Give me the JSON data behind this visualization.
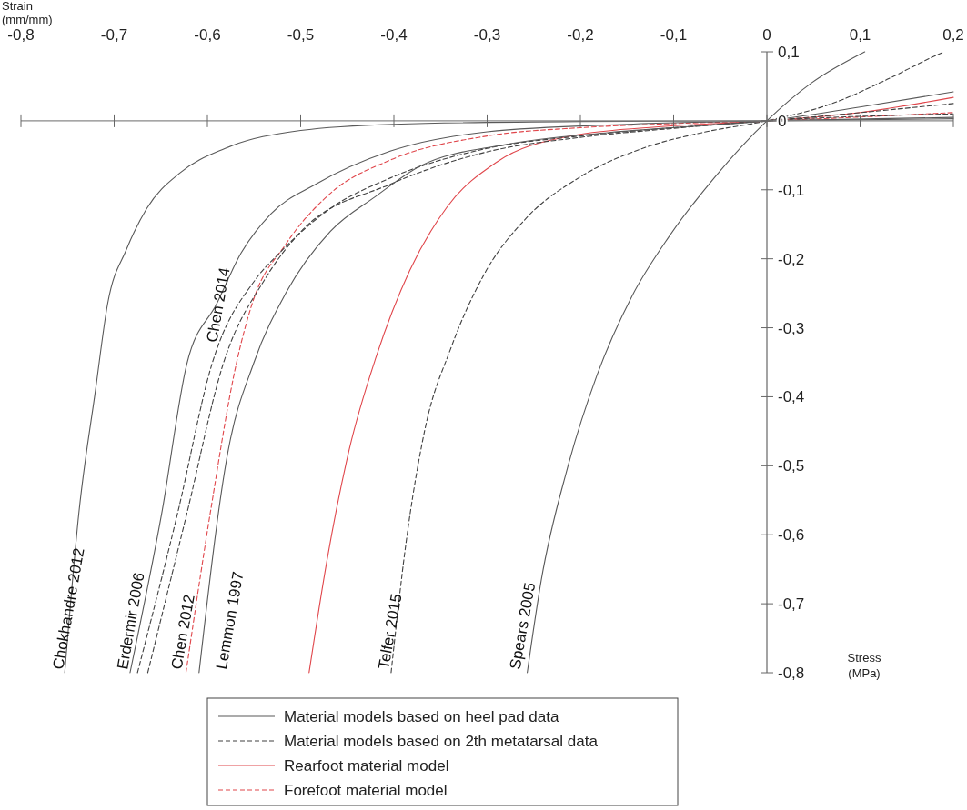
{
  "chart_data": {
    "type": "line",
    "xlabel": "Strain (mm/mm)",
    "ylabel": "Stress (MPa)",
    "xlim": [
      -0.8,
      0.2
    ],
    "ylim": [
      -0.8,
      0.1
    ],
    "xticks": [
      {
        "value": -0.8,
        "label": "-0,8"
      },
      {
        "value": -0.7,
        "label": "-0,7"
      },
      {
        "value": -0.6,
        "label": "-0,6"
      },
      {
        "value": -0.5,
        "label": "-0,5"
      },
      {
        "value": -0.4,
        "label": "-0,4"
      },
      {
        "value": -0.3,
        "label": "-0,3"
      },
      {
        "value": -0.2,
        "label": "-0,2"
      },
      {
        "value": -0.1,
        "label": "-0,1"
      },
      0,
      {
        "value": 0.1,
        "label": "0,1"
      },
      {
        "value": 0.2,
        "label": "0,2"
      }
    ],
    "yticks": [
      {
        "value": 0.1,
        "label": "0,1"
      },
      0,
      {
        "value": -0.1,
        "label": "-0,1"
      },
      {
        "value": -0.2,
        "label": "-0,2"
      },
      {
        "value": -0.3,
        "label": "-0,3"
      },
      {
        "value": -0.4,
        "label": "-0,4"
      },
      {
        "value": -0.5,
        "label": "-0,5"
      },
      {
        "value": -0.6,
        "label": "-0,6"
      },
      {
        "value": -0.7,
        "label": "-0,7"
      },
      {
        "value": -0.8,
        "label": "-0,8"
      }
    ],
    "legend": "bottom",
    "marker": "none",
    "series": [
      {
        "name": "Material models based on heel pad data",
        "color": "#595959",
        "line_style": "solid",
        "x": [
          -0.257,
          -0.242,
          -0.214,
          -0.182,
          -0.145,
          -0.105,
          -0.056,
          0,
          0.048,
          0.105
        ],
        "values": [
          -0.8,
          -0.666,
          -0.504,
          -0.368,
          -0.255,
          -0.168,
          -0.082,
          0,
          0.055,
          0.1
        ]
      },
      {
        "name": "Material models based on 2th metatarsal data",
        "color": "#404040",
        "line_style": "dashed",
        "x": [
          -0.403,
          -0.387,
          -0.367,
          -0.339,
          -0.303,
          -0.258,
          -0.201,
          -0.129,
          -0.069,
          0,
          0.07,
          0.129,
          0.177,
          0.19
        ],
        "values": [
          -0.8,
          -0.612,
          -0.449,
          -0.33,
          -0.222,
          -0.141,
          -0.082,
          -0.038,
          -0.017,
          0,
          0.025,
          0.06,
          0.092,
          0.1
        ]
      },
      {
        "name": "Rearfoot material model",
        "color": "#e0464b",
        "line_style": "solid",
        "x": [
          -0.491,
          -0.472,
          -0.448,
          -0.419,
          -0.383,
          -0.343,
          -0.29,
          -0.21,
          -0.109,
          0,
          0.1,
          0.2
        ],
        "values": [
          -0.8,
          -0.639,
          -0.477,
          -0.342,
          -0.217,
          -0.125,
          -0.06,
          -0.022,
          -0.008,
          0,
          0.012,
          0.034
        ]
      },
      {
        "name": "Forefoot material model",
        "color": "#e0464b",
        "line_style": "dashed",
        "x": [
          -0.623,
          -0.597,
          -0.569,
          -0.552,
          -0.516,
          -0.468,
          -0.404,
          -0.3,
          -0.2,
          -0.1,
          0,
          0.2
        ],
        "values": [
          -0.8,
          -0.569,
          -0.352,
          -0.265,
          -0.179,
          -0.105,
          -0.057,
          -0.022,
          -0.01,
          -0.004,
          0,
          0.012
        ]
      },
      {
        "color": "#595959",
        "line_style": "solid",
        "x": [
          -0.753,
          -0.738,
          -0.72,
          -0.707,
          -0.687,
          -0.665,
          -0.629,
          -0.581,
          -0.5,
          -0.4,
          -0.2,
          0,
          0.2
        ],
        "values": [
          -0.8,
          -0.57,
          -0.39,
          -0.265,
          -0.187,
          -0.127,
          -0.075,
          -0.04,
          -0.014,
          -0.005,
          -0.001,
          0,
          0.003
        ]
      },
      {
        "color": "#595959",
        "line_style": "solid",
        "x": [
          -0.683,
          -0.649,
          -0.622,
          -0.59,
          -0.564,
          -0.532,
          -0.484,
          -0.404,
          -0.3,
          -0.15,
          0,
          0.2
        ],
        "values": [
          -0.8,
          -0.569,
          -0.352,
          -0.265,
          -0.192,
          -0.135,
          -0.092,
          -0.044,
          -0.016,
          -0.005,
          0,
          0.005
        ]
      },
      {
        "color": "#404040",
        "line_style": "dashed",
        "x": [
          -0.675,
          -0.632,
          -0.595,
          -0.549,
          -0.523,
          -0.468,
          -0.404,
          -0.3,
          -0.2,
          -0.1,
          0,
          0.2
        ],
        "values": [
          -0.8,
          -0.569,
          -0.352,
          -0.231,
          -0.192,
          -0.127,
          -0.083,
          -0.04,
          -0.022,
          -0.01,
          0,
          0.025
        ]
      },
      {
        "color": "#404040",
        "line_style": "dashed",
        "x": [
          -0.664,
          -0.622,
          -0.583,
          -0.539,
          -0.5,
          -0.404,
          -0.3,
          -0.2,
          -0.1,
          0,
          0.2
        ],
        "values": [
          -0.8,
          -0.569,
          -0.352,
          -0.231,
          -0.161,
          -0.092,
          -0.045,
          -0.024,
          -0.011,
          0,
          0.01
        ]
      },
      {
        "color": "#595959",
        "line_style": "solid",
        "x": [
          -0.609,
          -0.578,
          -0.55,
          -0.516,
          -0.468,
          -0.42,
          -0.371,
          -0.283,
          -0.169,
          -0.069,
          0,
          0.1,
          0.2
        ],
        "values": [
          -0.8,
          -0.48,
          -0.35,
          -0.25,
          -0.16,
          -0.11,
          -0.065,
          -0.035,
          -0.017,
          -0.007,
          0,
          0.02,
          0.042
        ]
      }
    ],
    "annotations": [
      {
        "text": "Chokhandre 2012",
        "x": -0.753,
        "y": -0.8
      },
      {
        "text": "Erdermir 2006",
        "x": -0.683,
        "y": -0.8
      },
      {
        "text": "Chen 2014",
        "x": -0.59,
        "y": -0.326
      },
      {
        "text": "Chen 2012",
        "x": -0.623,
        "y": -0.8
      },
      {
        "text": "Lemmon 1997",
        "x": -0.609,
        "y": -0.8
      },
      {
        "text": "Telfer 2015",
        "x": -0.403,
        "y": -0.8
      },
      {
        "text": "Spears 2005",
        "x": -0.257,
        "y": -0.8
      }
    ]
  }
}
